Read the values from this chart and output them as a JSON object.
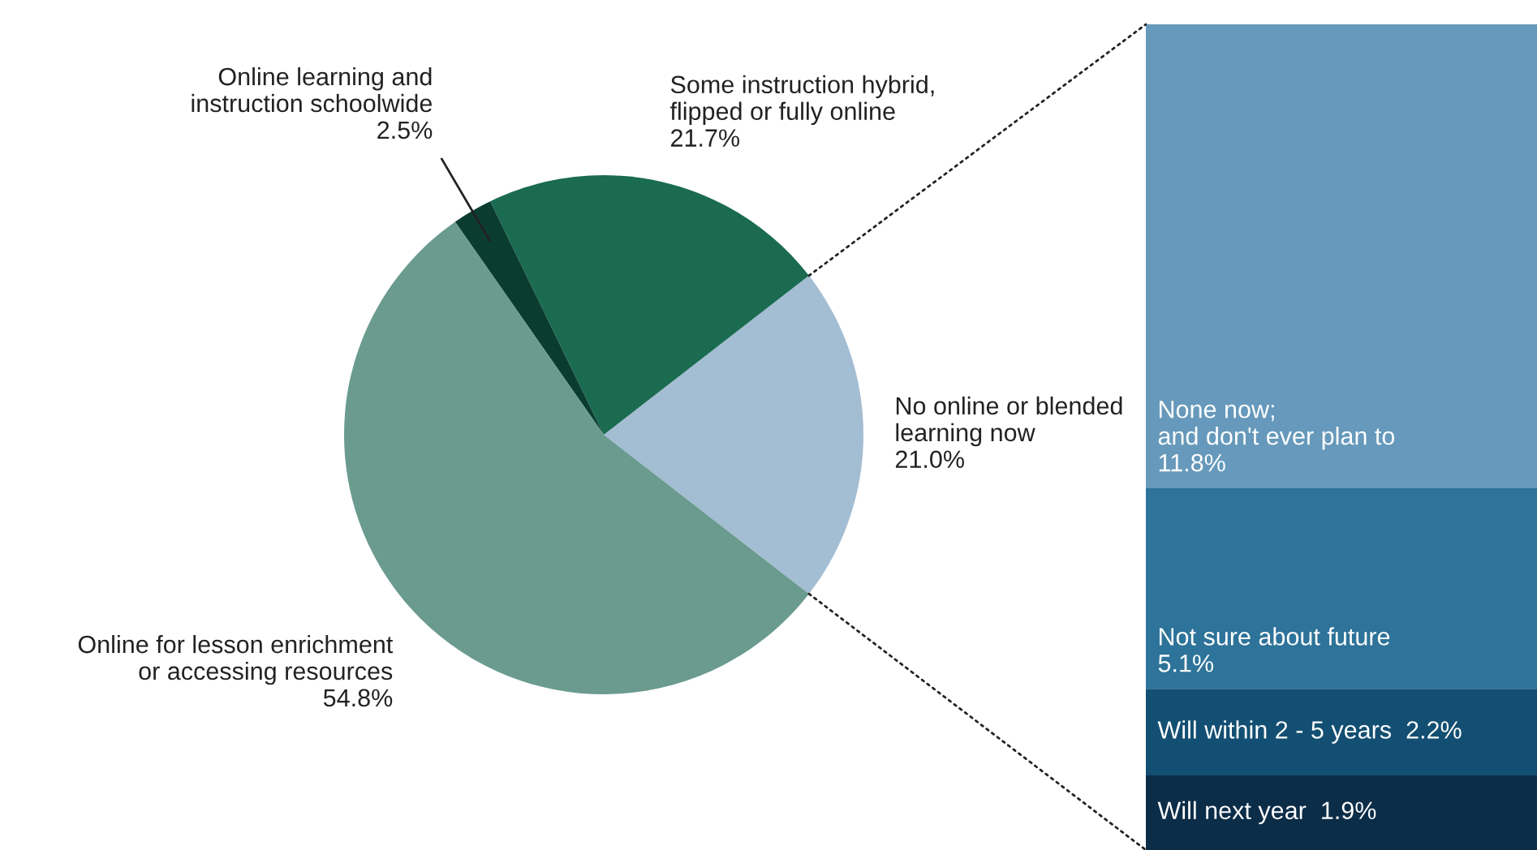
{
  "chart_data": [
    {
      "type": "pie",
      "categories": [
        "No online or blended\nlearning now",
        "Some instruction hybrid,\nflipped or fully online",
        "Online learning and\ninstruction schoolwide",
        "Online for lesson enrichment\nor accessing resources"
      ],
      "values": [
        21.0,
        21.7,
        2.5,
        54.8
      ],
      "value_labels": [
        "21.0%",
        "21.7%",
        "2.5%",
        "54.8%"
      ],
      "colors": [
        "#a3bdd3",
        "#1a6b50",
        "#0a3d30",
        "#6a9b8e"
      ],
      "legend": false
    },
    {
      "type": "bar",
      "stacked": true,
      "categories": [
        null
      ],
      "ylim": [
        0,
        21.0
      ],
      "legend": false,
      "tick_labels": false,
      "series": [
        {
          "name": "Will next year",
          "color": "#0c2d48",
          "values": [
            1.9
          ],
          "value_labels": [
            "1.9%"
          ]
        },
        {
          "name": "Will within 2 - 5 years",
          "color": "#134f72",
          "values": [
            2.2
          ],
          "value_labels": [
            "2.2%"
          ]
        },
        {
          "name": "Not sure about future",
          "color": "#2e7399",
          "values": [
            5.1
          ],
          "value_labels": [
            "5.1%"
          ]
        },
        {
          "name": "None now;\nand don't ever plan to",
          "color": "#6699bb",
          "values": [
            11.8
          ],
          "value_labels": [
            "11.8%"
          ]
        }
      ]
    }
  ]
}
